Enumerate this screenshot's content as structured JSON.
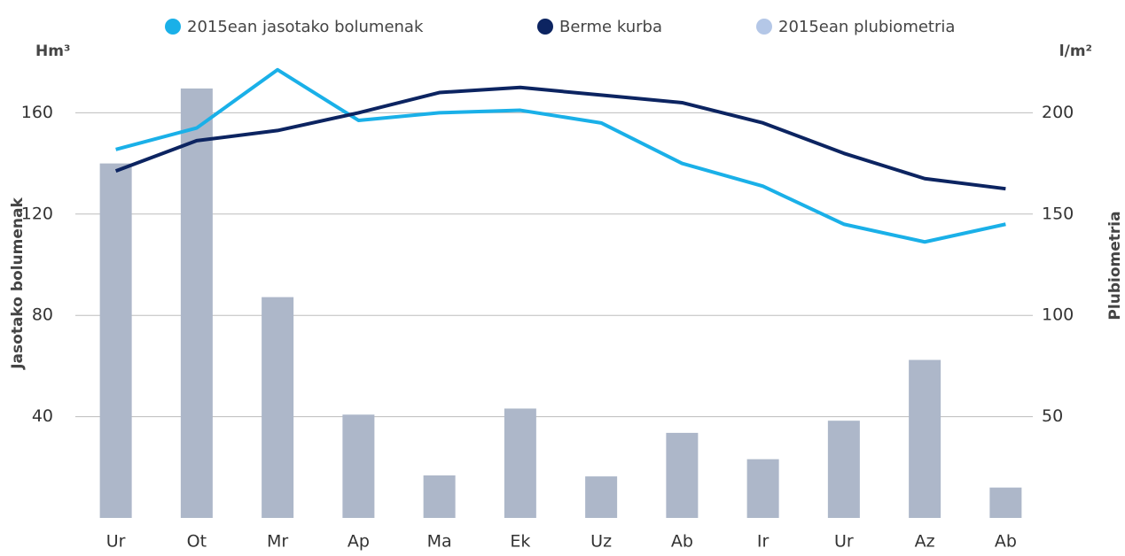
{
  "chart_data": {
    "type": "bar_line",
    "categories": [
      "Ur",
      "Ot",
      "Mr",
      "Ap",
      "Ma",
      "Ek",
      "Uz",
      "Ab",
      "Ir",
      "Ur",
      "Az",
      "Ab"
    ],
    "ylabel": "Jasotako bolumenak",
    "yunit": "Hm³",
    "y2label": "Plubiometria",
    "y2unit": "l/m²",
    "ylim": [
      0,
      200
    ],
    "yticks": [
      40,
      80,
      120,
      160
    ],
    "y2lim": [
      0,
      250
    ],
    "y2ticks": [
      50,
      100,
      150,
      200
    ],
    "grid": true,
    "legend": "top",
    "series": [
      {
        "name": "2015ean jasotako bolumenak",
        "color": "#1ab0e8",
        "kind": "line",
        "axis": "y",
        "values": [
          145.5,
          154,
          177,
          157,
          160,
          161,
          156,
          140,
          131,
          116,
          109,
          116
        ]
      },
      {
        "name": "Berme kurba",
        "color": "#0c2461",
        "kind": "line",
        "axis": "y",
        "values": [
          137,
          149,
          153,
          160,
          168,
          170,
          167,
          164,
          156,
          144,
          134,
          130
        ]
      },
      {
        "name": "2015ean plubiometria",
        "color": "#adb7c9",
        "legend_color": "#b4c7e7",
        "kind": "bar",
        "axis": "y2",
        "values": [
          175,
          212,
          109,
          51,
          21,
          54,
          20.5,
          42,
          29,
          48,
          78,
          15
        ]
      }
    ]
  }
}
